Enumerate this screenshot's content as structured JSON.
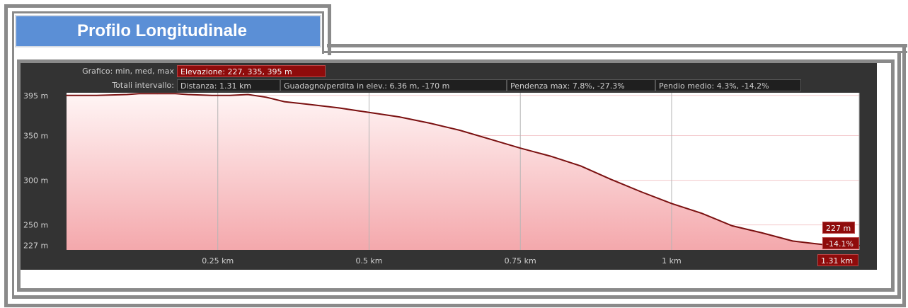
{
  "panel": {
    "title": "Profilo Longitudinale"
  },
  "header": {
    "row1_label": "Grafico: min, med, max",
    "elevation": "Elevazione: 227, 335, 395 m",
    "row2_label": "Totali intervallo:",
    "distance": "Distanza: 1.31 km",
    "gain_loss": "Guadagno/perdita in elev.: 6.36 m, -170 m",
    "max_slope": "Pendenza max: 7.8%, -27.3%",
    "avg_slope": "Pendio medio: 4.3%, -14.2%"
  },
  "markers": {
    "end_elevation": "227 m",
    "end_slope": "-14.1%",
    "end_distance": "1.31 km"
  },
  "colors": {
    "line": "#7a1010",
    "fill_top": "#fff5f5",
    "fill_bottom": "#f4a8ac",
    "badge": "#8f0b0b",
    "panel_blue": "#5b8fd6"
  },
  "chart_data": {
    "type": "area",
    "x_unit": "km",
    "y_unit": "m",
    "xlim": [
      0,
      1.31
    ],
    "ylim": [
      222,
      398
    ],
    "x_ticks": [
      0.25,
      0.5,
      0.75,
      1.0
    ],
    "x_tick_labels": [
      "0.25 km",
      "0.5 km",
      "0.75 km",
      "1 km"
    ],
    "y_ticks": [
      395,
      350,
      300,
      250,
      227
    ],
    "y_tick_labels": [
      "395 m",
      "350 m",
      "300 m",
      "250 m",
      "227 m"
    ],
    "grid": true,
    "x": [
      0,
      0.05,
      0.1,
      0.12,
      0.15,
      0.18,
      0.2,
      0.24,
      0.27,
      0.3,
      0.33,
      0.36,
      0.4,
      0.45,
      0.5,
      0.55,
      0.6,
      0.65,
      0.7,
      0.75,
      0.8,
      0.85,
      0.9,
      0.95,
      1.0,
      1.05,
      1.1,
      1.15,
      1.2,
      1.25,
      1.31
    ],
    "y": [
      395,
      395,
      396,
      397,
      397,
      397,
      396,
      395,
      395,
      396,
      393,
      388,
      385,
      381,
      376,
      371,
      364,
      356,
      346,
      336,
      327,
      316,
      301,
      287,
      274,
      263,
      249,
      241,
      232,
      228,
      227
    ]
  }
}
